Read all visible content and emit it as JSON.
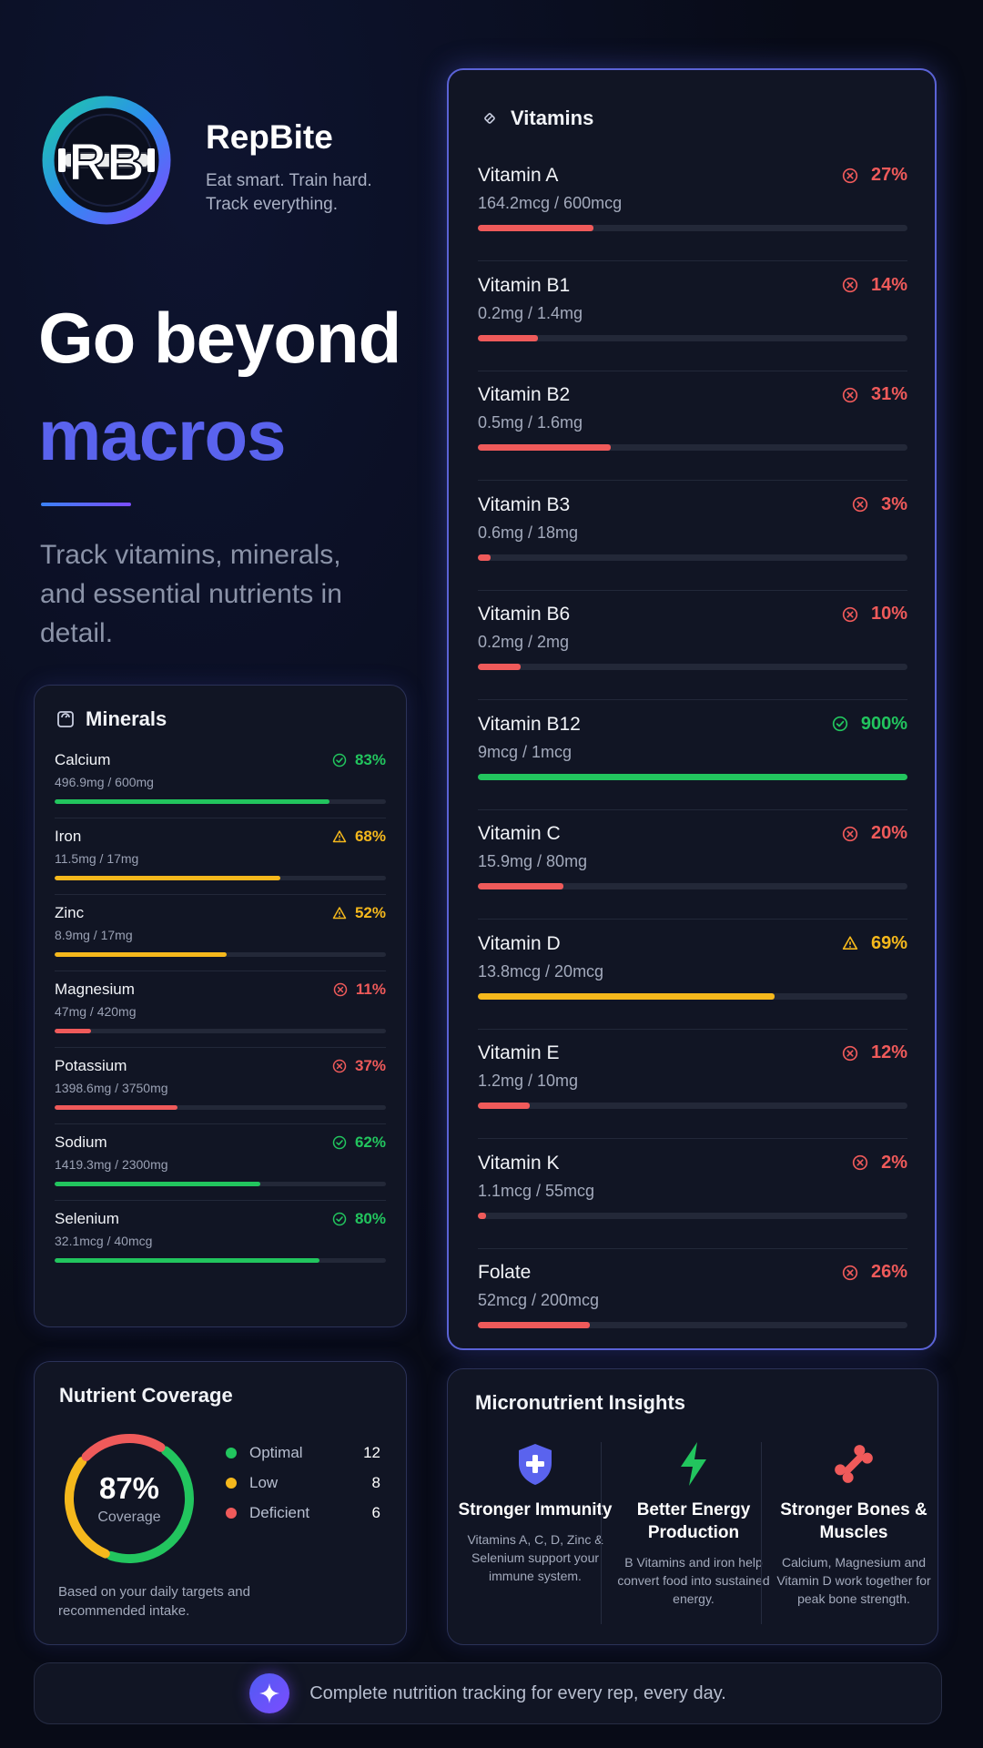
{
  "brand": {
    "name": "RepBite",
    "tagline": "Eat smart. Train hard. Track everything.",
    "logo_letters": "RB",
    "colors": {
      "primary": "#5a63ee",
      "logo_ring_start": "#1ec9a8",
      "logo_ring_end": "#7c4dff"
    }
  },
  "hero": {
    "line1": "Go beyond",
    "line2": "macros",
    "subtitle": "Track vitamins, minerals, and essential nutrients in detail."
  },
  "status_colors": {
    "ok": "#22c55e",
    "warn": "#f5b81c",
    "bad": "#ef5a5a"
  },
  "minerals": {
    "title": "Minerals",
    "icon": "scale-icon",
    "items": [
      {
        "name": "Calcium",
        "amount": "496.9mg / 600mg",
        "percent_label": "83%",
        "percent": 83,
        "status": "ok",
        "icon": "check-circle-icon"
      },
      {
        "name": "Iron",
        "amount": "11.5mg / 17mg",
        "percent_label": "68%",
        "percent": 68,
        "status": "warn",
        "icon": "warning-icon"
      },
      {
        "name": "Zinc",
        "amount": "8.9mg / 17mg",
        "percent_label": "52%",
        "percent": 52,
        "status": "warn",
        "icon": "warning-icon"
      },
      {
        "name": "Magnesium",
        "amount": "47mg / 420mg",
        "percent_label": "11%",
        "percent": 11,
        "status": "bad",
        "icon": "x-circle-icon"
      },
      {
        "name": "Potassium",
        "amount": "1398.6mg / 3750mg",
        "percent_label": "37%",
        "percent": 37,
        "status": "bad",
        "icon": "x-circle-icon"
      },
      {
        "name": "Sodium",
        "amount": "1419.3mg / 2300mg",
        "percent_label": "62%",
        "percent": 62,
        "status": "ok",
        "icon": "check-circle-icon"
      },
      {
        "name": "Selenium",
        "amount": "32.1mcg / 40mcg",
        "percent_label": "80%",
        "percent": 80,
        "status": "ok",
        "icon": "check-circle-icon"
      }
    ]
  },
  "vitamins": {
    "title": "Vitamins",
    "icon": "pill-icon",
    "items": [
      {
        "name": "Vitamin A",
        "amount": "164.2mcg / 600mcg",
        "percent_label": "27%",
        "percent": 27,
        "status": "bad",
        "icon": "x-circle-icon"
      },
      {
        "name": "Vitamin B1",
        "amount": "0.2mg / 1.4mg",
        "percent_label": "14%",
        "percent": 14,
        "status": "bad",
        "icon": "x-circle-icon"
      },
      {
        "name": "Vitamin B2",
        "amount": "0.5mg / 1.6mg",
        "percent_label": "31%",
        "percent": 31,
        "status": "bad",
        "icon": "x-circle-icon"
      },
      {
        "name": "Vitamin B3",
        "amount": "0.6mg / 18mg",
        "percent_label": "3%",
        "percent": 3,
        "status": "bad",
        "icon": "x-circle-icon"
      },
      {
        "name": "Vitamin B6",
        "amount": "0.2mg / 2mg",
        "percent_label": "10%",
        "percent": 10,
        "status": "bad",
        "icon": "x-circle-icon"
      },
      {
        "name": "Vitamin B12",
        "amount": "9mcg / 1mcg",
        "percent_label": "900%",
        "percent": 100,
        "status": "ok",
        "icon": "check-circle-icon"
      },
      {
        "name": "Vitamin C",
        "amount": "15.9mg / 80mg",
        "percent_label": "20%",
        "percent": 20,
        "status": "bad",
        "icon": "x-circle-icon"
      },
      {
        "name": "Vitamin D",
        "amount": "13.8mcg / 20mcg",
        "percent_label": "69%",
        "percent": 69,
        "status": "warn",
        "icon": "warning-icon"
      },
      {
        "name": "Vitamin E",
        "amount": "1.2mg / 10mg",
        "percent_label": "12%",
        "percent": 12,
        "status": "bad",
        "icon": "x-circle-icon"
      },
      {
        "name": "Vitamin K",
        "amount": "1.1mcg / 55mcg",
        "percent_label": "2%",
        "percent": 2,
        "status": "bad",
        "icon": "x-circle-icon"
      },
      {
        "name": "Folate",
        "amount": "52mcg / 200mcg",
        "percent_label": "26%",
        "percent": 26,
        "status": "bad",
        "icon": "x-circle-icon"
      }
    ]
  },
  "coverage": {
    "title": "Nutrient Coverage",
    "value": "87%",
    "label": "Coverage",
    "legend": [
      {
        "label": "Optimal",
        "count": "12",
        "color": "#22c55e"
      },
      {
        "label": "Low",
        "count": "8",
        "color": "#f5b81c"
      },
      {
        "label": "Deficient",
        "count": "6",
        "color": "#ef5a5a"
      }
    ],
    "note": "Based on your daily targets and recommended intake."
  },
  "insights": {
    "title": "Micronutrient Insights",
    "items": [
      {
        "icon": "shield-plus-icon",
        "title": "Stronger Immunity",
        "desc": "Vitamins A, C, D, Zinc & Selenium support your immune system.",
        "color": "#5a63ee"
      },
      {
        "icon": "lightning-icon",
        "title": "Better Energy Production",
        "desc": "B Vitamins and iron help convert food into sustained energy.",
        "color": "#22c55e"
      },
      {
        "icon": "bone-icon",
        "title": "Stronger Bones & Muscles",
        "desc": "Calcium, Magnesium and Vitamin D work together for peak bone strength.",
        "color": "#ef5a5a"
      }
    ]
  },
  "footer": {
    "text": "Complete nutrition tracking for every rep, every day.",
    "icon": "sparkle-icon"
  }
}
